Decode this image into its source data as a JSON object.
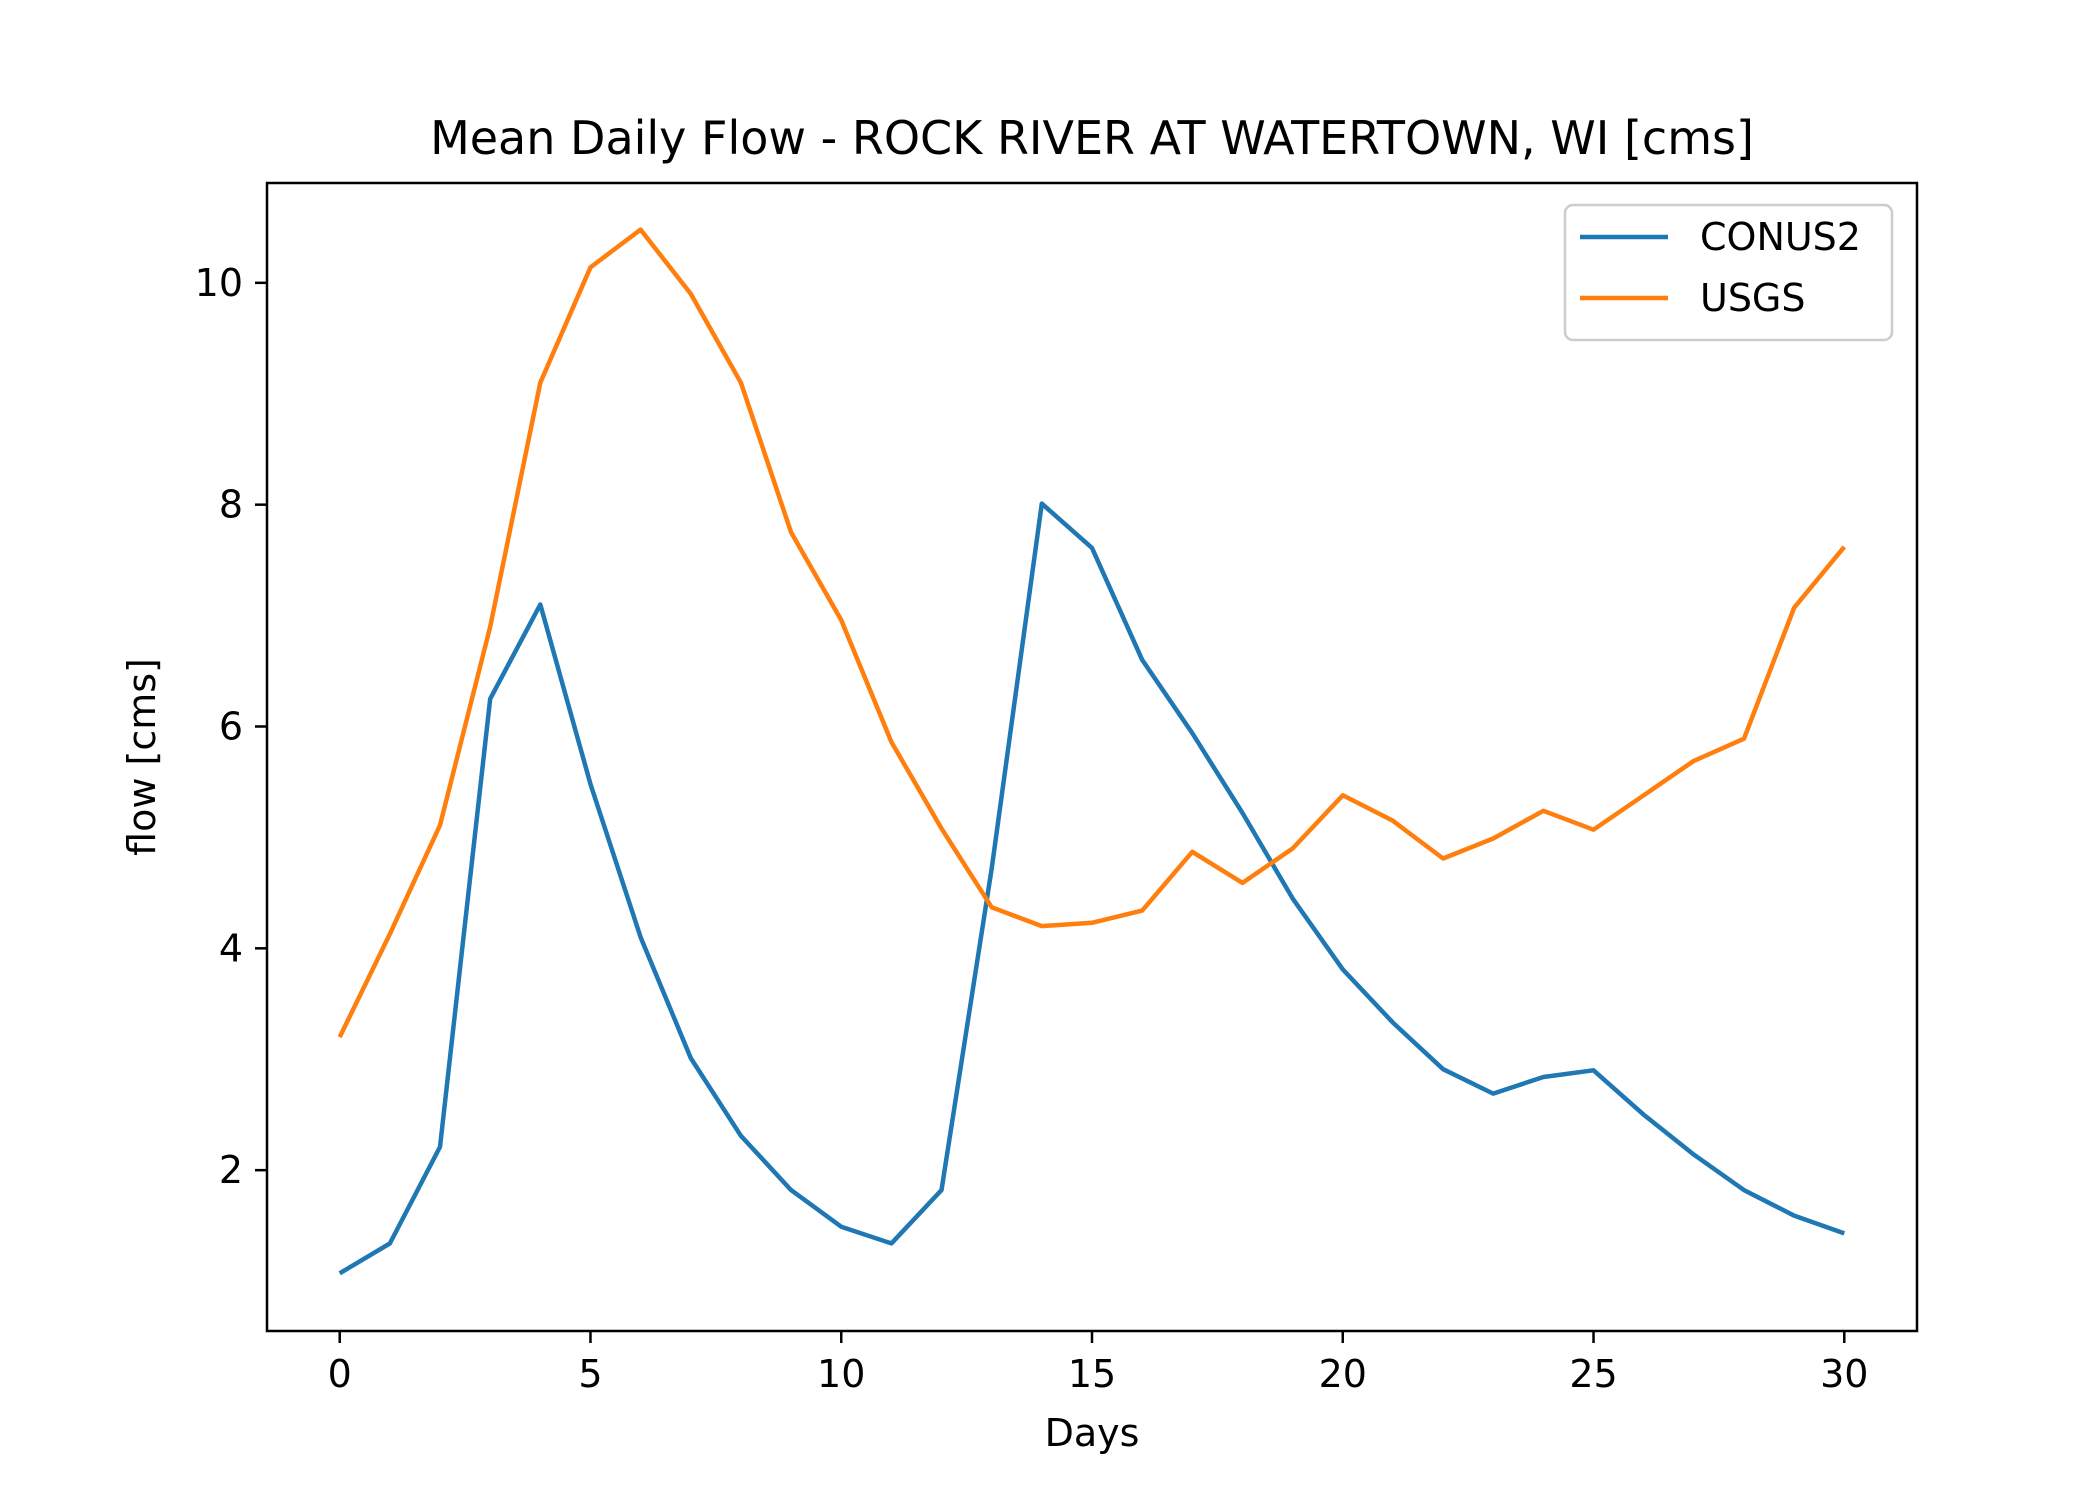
{
  "chart_data": {
    "type": "line",
    "title": "Mean Daily Flow - ROCK RIVER AT WATERTOWN, WI [cms]",
    "xlabel": "Days",
    "ylabel": "flow [cms]",
    "xlim": [
      -1.45,
      31.45
    ],
    "ylim": [
      0.55,
      10.9
    ],
    "x_ticks": [
      0,
      5,
      10,
      15,
      20,
      25,
      30
    ],
    "y_ticks": [
      2,
      4,
      6,
      8,
      10
    ],
    "grid": false,
    "legend_position": "top-right",
    "x": [
      0,
      1,
      2,
      3,
      4,
      5,
      6,
      7,
      8,
      9,
      10,
      11,
      12,
      13,
      14,
      15,
      16,
      17,
      18,
      19,
      20,
      21,
      22,
      23,
      24,
      25,
      26,
      27,
      28,
      29,
      30
    ],
    "series": [
      {
        "name": "CONUS2",
        "color": "#1f77b4",
        "values": [
          1.07,
          1.34,
          2.21,
          6.25,
          7.1,
          5.48,
          4.1,
          3.01,
          2.31,
          1.82,
          1.49,
          1.34,
          1.82,
          4.72,
          8.01,
          7.61,
          6.6,
          5.94,
          5.22,
          4.45,
          3.81,
          3.33,
          2.91,
          2.69,
          2.84,
          2.9,
          2.5,
          2.14,
          1.82,
          1.59,
          1.43
        ]
      },
      {
        "name": "USGS",
        "color": "#ff7f0e",
        "values": [
          3.2,
          4.13,
          5.11,
          6.9,
          9.1,
          10.14,
          10.48,
          9.9,
          9.1,
          7.75,
          6.96,
          5.86,
          5.08,
          4.37,
          4.2,
          4.23,
          4.34,
          4.87,
          4.59,
          4.9,
          5.38,
          5.15,
          4.81,
          4.99,
          5.24,
          5.07,
          5.38,
          5.69,
          5.89,
          7.07,
          7.62
        ]
      }
    ]
  }
}
